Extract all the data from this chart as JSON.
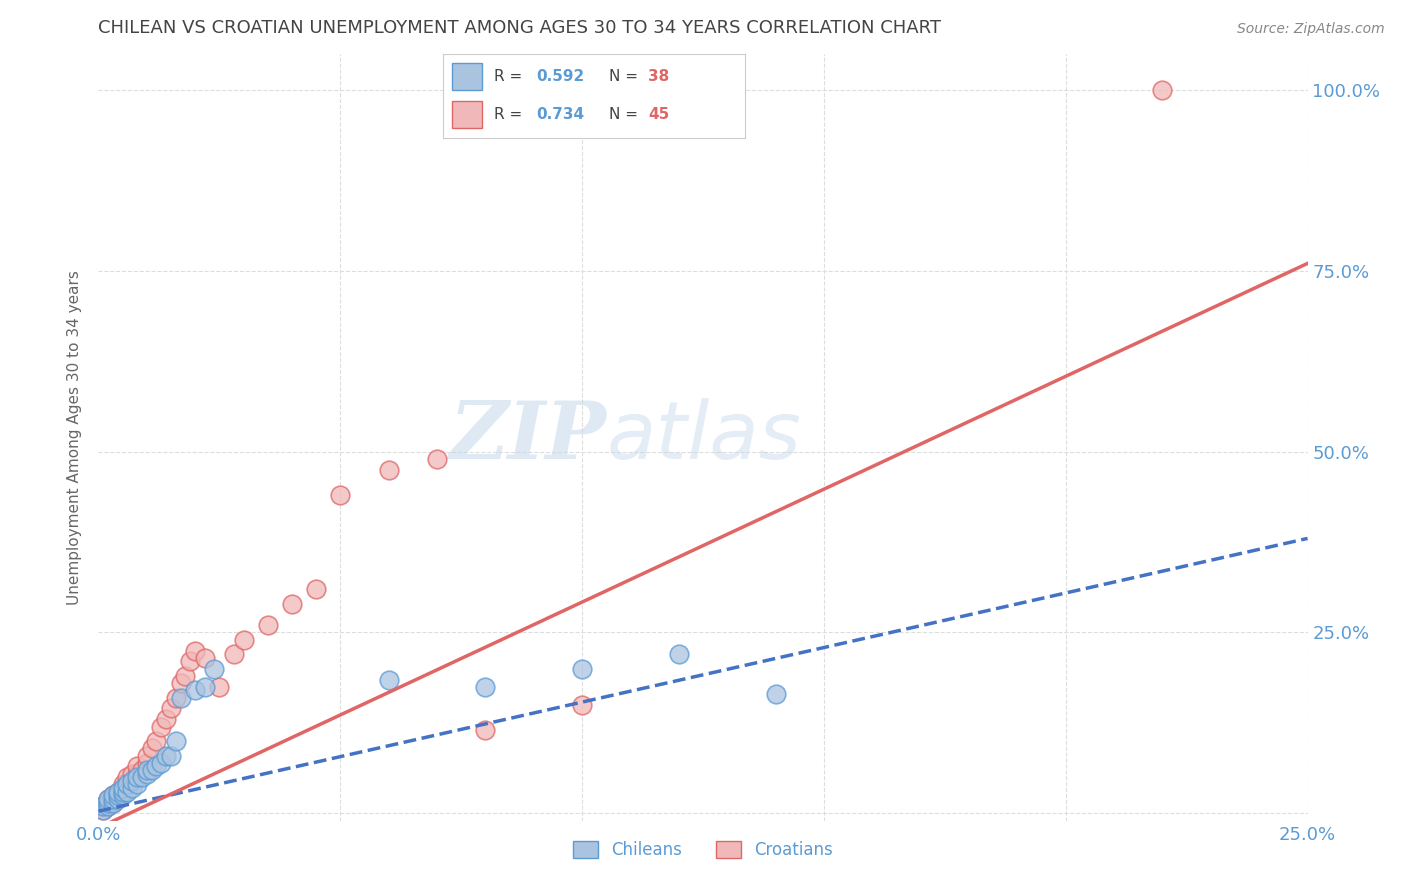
{
  "title": "CHILEAN VS CROATIAN UNEMPLOYMENT AMONG AGES 30 TO 34 YEARS CORRELATION CHART",
  "source": "Source: ZipAtlas.com",
  "ylabel": "Unemployment Among Ages 30 to 34 years",
  "xlim": [
    0.0,
    0.25
  ],
  "ylim": [
    -0.01,
    1.05
  ],
  "xticks": [
    0.0,
    0.05,
    0.1,
    0.15,
    0.2,
    0.25
  ],
  "yticks": [
    0.0,
    0.25,
    0.5,
    0.75,
    1.0
  ],
  "xticklabels": [
    "0.0%",
    "",
    "",
    "",
    "",
    "25.0%"
  ],
  "yticklabels_right": [
    "",
    "25.0%",
    "50.0%",
    "75.0%",
    "100.0%"
  ],
  "chilean_R": 0.592,
  "chilean_N": 38,
  "croatian_R": 0.734,
  "croatian_N": 45,
  "chilean_color": "#aac4e0",
  "croatian_color": "#f0b8b8",
  "chilean_edge_color": "#5b9bd5",
  "croatian_edge_color": "#e06666",
  "chilean_line_color": "#4472c4",
  "croatian_line_color": "#e06666",
  "watermark_zip": "ZIP",
  "watermark_atlas": "atlas",
  "watermark_color_zip": "#c5d8ea",
  "watermark_color_atlas": "#c5d8ea",
  "background_color": "#ffffff",
  "grid_color": "#dddddd",
  "grid_linestyle": "--",
  "title_color": "#444444",
  "label_color": "#5b9bd5",
  "chilean_x": [
    0.001,
    0.001,
    0.002,
    0.002,
    0.002,
    0.003,
    0.003,
    0.003,
    0.004,
    0.004,
    0.004,
    0.005,
    0.005,
    0.005,
    0.006,
    0.006,
    0.007,
    0.007,
    0.008,
    0.008,
    0.009,
    0.01,
    0.01,
    0.011,
    0.012,
    0.013,
    0.014,
    0.015,
    0.016,
    0.017,
    0.02,
    0.022,
    0.024,
    0.06,
    0.08,
    0.1,
    0.12,
    0.14
  ],
  "chilean_y": [
    0.005,
    0.01,
    0.01,
    0.015,
    0.02,
    0.015,
    0.02,
    0.025,
    0.02,
    0.025,
    0.03,
    0.025,
    0.03,
    0.035,
    0.03,
    0.04,
    0.035,
    0.045,
    0.04,
    0.05,
    0.05,
    0.055,
    0.06,
    0.06,
    0.065,
    0.07,
    0.08,
    0.08,
    0.1,
    0.16,
    0.17,
    0.175,
    0.2,
    0.185,
    0.175,
    0.2,
    0.22,
    0.165
  ],
  "croatian_x": [
    0.001,
    0.001,
    0.002,
    0.002,
    0.002,
    0.003,
    0.003,
    0.003,
    0.004,
    0.004,
    0.005,
    0.005,
    0.005,
    0.006,
    0.006,
    0.007,
    0.007,
    0.008,
    0.008,
    0.009,
    0.01,
    0.01,
    0.011,
    0.012,
    0.013,
    0.014,
    0.015,
    0.016,
    0.017,
    0.018,
    0.019,
    0.02,
    0.022,
    0.025,
    0.028,
    0.03,
    0.035,
    0.04,
    0.045,
    0.05,
    0.06,
    0.07,
    0.08,
    0.1,
    0.22
  ],
  "croatian_y": [
    0.005,
    0.01,
    0.01,
    0.015,
    0.02,
    0.015,
    0.02,
    0.025,
    0.025,
    0.03,
    0.03,
    0.035,
    0.04,
    0.04,
    0.05,
    0.045,
    0.055,
    0.055,
    0.065,
    0.06,
    0.07,
    0.08,
    0.09,
    0.1,
    0.12,
    0.13,
    0.145,
    0.16,
    0.18,
    0.19,
    0.21,
    0.225,
    0.215,
    0.175,
    0.22,
    0.24,
    0.26,
    0.29,
    0.31,
    0.44,
    0.475,
    0.49,
    0.115,
    0.15,
    1.0
  ],
  "chilean_line_x0": 0.0,
  "chilean_line_x1": 0.25,
  "chilean_line_y0": 0.003,
  "chilean_line_y1": 0.38,
  "croatian_line_x0": 0.0,
  "croatian_line_x1": 0.25,
  "croatian_line_y0": -0.02,
  "croatian_line_y1": 0.76
}
